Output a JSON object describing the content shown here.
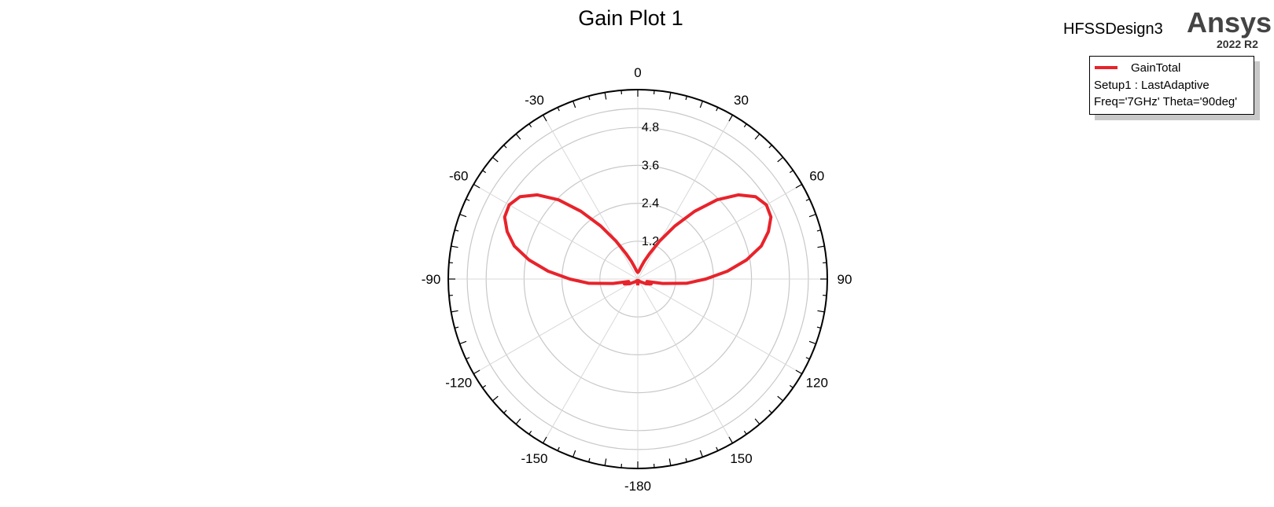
{
  "header": {
    "design_name": "HFSSDesign3",
    "brand": "Ansys",
    "version": "2022 R2"
  },
  "legend": {
    "series_label": "GainTotal",
    "line2": "Setup1 : LastAdaptive",
    "line3": "Freq='7GHz' Theta='90deg'"
  },
  "colors": {
    "series": "#e8232b",
    "grid": "#c8c8c8"
  },
  "chart_data": {
    "type": "polar-line",
    "title": "Gain Plot 1",
    "angle_labels": [
      {
        "angle": 0,
        "label": "0"
      },
      {
        "angle": 30,
        "label": "30"
      },
      {
        "angle": 60,
        "label": "60"
      },
      {
        "angle": 90,
        "label": "90"
      },
      {
        "angle": 120,
        "label": "120"
      },
      {
        "angle": 150,
        "label": "150"
      },
      {
        "angle": 180,
        "label": "-180"
      },
      {
        "angle": -150,
        "label": "-150"
      },
      {
        "angle": -120,
        "label": "-120"
      },
      {
        "angle": -90,
        "label": "-90"
      },
      {
        "angle": -60,
        "label": "-60"
      },
      {
        "angle": -30,
        "label": "-30"
      }
    ],
    "radial_ticks": [
      1.2,
      2.4,
      3.6,
      4.8
    ],
    "radial_range": [
      0,
      6.0
    ],
    "series": [
      {
        "name": "GainTotal",
        "points": [
          [
            -180,
            0.2
          ],
          [
            -170,
            0.08
          ],
          [
            -160,
            0.05
          ],
          [
            -150,
            0.06
          ],
          [
            -140,
            0.1
          ],
          [
            -130,
            0.15
          ],
          [
            -120,
            0.3
          ],
          [
            -110,
            0.45
          ],
          [
            -105,
            0.3
          ],
          [
            -100,
            0.8
          ],
          [
            -95,
            1.55
          ],
          [
            -90,
            2.15
          ],
          [
            -85,
            2.85
          ],
          [
            -80,
            3.5
          ],
          [
            -75,
            4.05
          ],
          [
            -70,
            4.4
          ],
          [
            -65,
            4.65
          ],
          [
            -60,
            4.7
          ],
          [
            -55,
            4.55
          ],
          [
            -50,
            4.15
          ],
          [
            -45,
            3.55
          ],
          [
            -40,
            2.8
          ],
          [
            -35,
            2.05
          ],
          [
            -30,
            1.4
          ],
          [
            -25,
            0.9
          ],
          [
            -20,
            0.6
          ],
          [
            -15,
            0.4
          ],
          [
            -10,
            0.28
          ],
          [
            -5,
            0.23
          ],
          [
            0,
            0.21
          ],
          [
            5,
            0.23
          ],
          [
            10,
            0.28
          ],
          [
            15,
            0.4
          ],
          [
            20,
            0.6
          ],
          [
            25,
            0.9
          ],
          [
            30,
            1.4
          ],
          [
            35,
            2.05
          ],
          [
            40,
            2.8
          ],
          [
            45,
            3.55
          ],
          [
            50,
            4.15
          ],
          [
            55,
            4.55
          ],
          [
            60,
            4.7
          ],
          [
            65,
            4.65
          ],
          [
            70,
            4.4
          ],
          [
            75,
            4.05
          ],
          [
            80,
            3.5
          ],
          [
            85,
            2.85
          ],
          [
            90,
            2.15
          ],
          [
            95,
            1.55
          ],
          [
            100,
            0.8
          ],
          [
            105,
            0.3
          ],
          [
            110,
            0.45
          ],
          [
            120,
            0.3
          ],
          [
            130,
            0.15
          ],
          [
            140,
            0.1
          ],
          [
            150,
            0.06
          ],
          [
            160,
            0.05
          ],
          [
            170,
            0.08
          ],
          [
            180,
            0.2
          ]
        ]
      }
    ],
    "grid": true,
    "legend_position": "top-right"
  }
}
